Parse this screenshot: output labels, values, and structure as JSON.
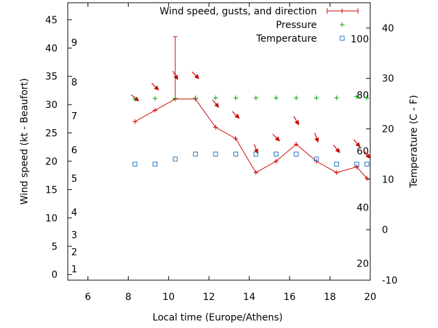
{
  "chart_data": {
    "type": "line",
    "title": "",
    "xlabel": "Local time (Europe/Athens)",
    "ylabel": "Wind speed (kt - Beaufort)",
    "y2label": "Temperature (C - F)",
    "xlim": [
      5,
      20
    ],
    "ylim": [
      -1,
      48
    ],
    "y2lim": [
      -10,
      45
    ],
    "x_ticks": [
      6,
      8,
      10,
      12,
      14,
      16,
      18,
      20
    ],
    "y_ticks": [
      0,
      5,
      10,
      15,
      20,
      25,
      30,
      35,
      40,
      45
    ],
    "y2_ticks": [
      -10,
      0,
      10,
      20,
      30,
      40
    ],
    "beaufort_labels": [
      {
        "label": "1",
        "kt": 1
      },
      {
        "label": "2",
        "kt": 4
      },
      {
        "label": "3",
        "kt": 7
      },
      {
        "label": "4",
        "kt": 11
      },
      {
        "label": "5",
        "kt": 17
      },
      {
        "label": "6",
        "kt": 22
      },
      {
        "label": "7",
        "kt": 28
      },
      {
        "label": "8",
        "kt": 34
      },
      {
        "label": "9",
        "kt": 41
      }
    ],
    "fahrenheit_labels": [
      {
        "label": "20",
        "celsius": -6.7
      },
      {
        "label": "40",
        "celsius": 4.4
      },
      {
        "label": "60",
        "celsius": 15.6
      },
      {
        "label": "80",
        "celsius": 26.7
      },
      {
        "label": "100",
        "celsius": 37.8
      }
    ],
    "legend": {
      "position": "top-right",
      "entries": [
        "Wind speed, gusts, and direction",
        "Pressure",
        "Temperature"
      ]
    },
    "series": [
      {
        "name": "Wind speed, gusts, and direction",
        "axis": "y1",
        "color": "#cc0000",
        "x": [
          8.33,
          9.33,
          10.33,
          11.33,
          12.33,
          13.33,
          14.33,
          15.33,
          16.33,
          17.33,
          18.33,
          19.33,
          19.83
        ],
        "values": [
          27,
          29,
          31,
          31,
          26,
          24,
          18,
          20,
          23,
          20,
          18,
          19,
          17
        ],
        "gusts": [
          null,
          null,
          42,
          null,
          null,
          null,
          null,
          null,
          null,
          null,
          null,
          null,
          null
        ],
        "direction_deg": [
          310,
          315,
          330,
          315,
          320,
          315,
          340,
          315,
          330,
          340,
          320,
          320,
          320
        ]
      },
      {
        "name": "Pressure",
        "axis": "y1",
        "color": "#00a000",
        "x": [
          8.33,
          9.33,
          10.33,
          11.33,
          12.33,
          13.33,
          14.33,
          15.33,
          16.33,
          17.33,
          18.33,
          19.33,
          19.83
        ],
        "values": [
          31,
          31.1,
          31.1,
          31.2,
          31.2,
          31.2,
          31.2,
          31.2,
          31.2,
          31.2,
          31.2,
          31.4,
          31.2
        ]
      },
      {
        "name": "Temperature",
        "axis": "y2",
        "color": "#1e78c8",
        "x": [
          8.33,
          9.33,
          10.33,
          11.33,
          12.33,
          13.33,
          14.33,
          15.33,
          16.33,
          17.33,
          18.33,
          19.33,
          19.83
        ],
        "values": [
          13,
          13,
          14,
          15,
          15,
          15,
          15,
          15,
          15,
          14,
          13,
          13,
          13
        ]
      }
    ]
  }
}
